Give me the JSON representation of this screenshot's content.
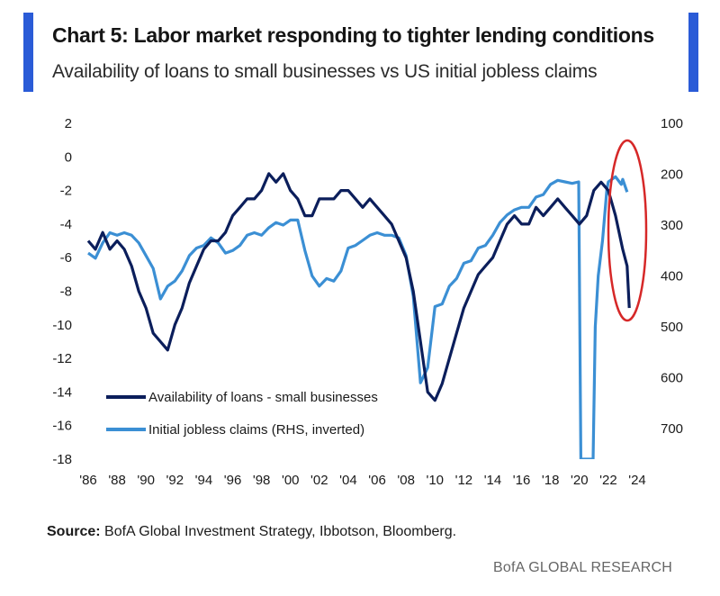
{
  "header": {
    "title": "Chart 5: Labor market responding to tighter lending conditions",
    "subtitle": "Availability of loans to small businesses vs US initial jobless claims"
  },
  "footer": {
    "source_label": "Source:",
    "source_text": "BofA Global Investment Strategy, Ibbotson, Bloomberg.",
    "brand": "BofA GLOBAL RESEARCH"
  },
  "colors": {
    "accent_bar": "#2a5bd7",
    "series_loans": "#0b1e5b",
    "series_claims": "#3b8fd4",
    "annotation": "#d62828"
  },
  "chart_data": {
    "type": "line",
    "title": "Chart 5: Labor market responding to tighter lending conditions",
    "subtitle": "Availability of loans to small businesses vs US initial jobless claims",
    "x_axis": {
      "range": [
        1986,
        2024
      ],
      "ticks": [
        1986,
        1988,
        1990,
        1992,
        1994,
        1996,
        1998,
        2000,
        2002,
        2004,
        2006,
        2008,
        2010,
        2012,
        2014,
        2016,
        2018,
        2020,
        2022,
        2024
      ],
      "tick_labels": [
        "'86",
        "'88",
        "'90",
        "'92",
        "'94",
        "'96",
        "'98",
        "'00",
        "'02",
        "'04",
        "'06",
        "'08",
        "'10",
        "'12",
        "'14",
        "'16",
        "'18",
        "'20",
        "'22",
        "'24"
      ]
    },
    "y_left": {
      "range": [
        -18,
        2
      ],
      "ticks": [
        2,
        0,
        -2,
        -4,
        -6,
        -8,
        -10,
        -12,
        -14,
        -16,
        -18
      ],
      "tick_labels": [
        "2",
        "0",
        "-2",
        "-4",
        "-6",
        "-8",
        "-10",
        "-12",
        "-14",
        "-16",
        "-18"
      ]
    },
    "y_right": {
      "label": "RHS, inverted",
      "inverted": true,
      "range": [
        100,
        760
      ],
      "ticks": [
        100,
        200,
        300,
        400,
        500,
        600,
        700
      ],
      "tick_labels": [
        "100",
        "200",
        "300",
        "400",
        "500",
        "600",
        "700"
      ]
    },
    "legend": {
      "position": "bottom-left",
      "entries": [
        "Availability of loans - small businesses",
        "Initial jobless claims (RHS, inverted)"
      ]
    },
    "series": [
      {
        "name": "Availability of loans - small businesses",
        "axis": "left",
        "points": [
          [
            1986,
            -5
          ],
          [
            1986.5,
            -5.5
          ],
          [
            1987,
            -4.5
          ],
          [
            1987.5,
            -5.5
          ],
          [
            1988,
            -5
          ],
          [
            1988.5,
            -5.5
          ],
          [
            1989,
            -6.5
          ],
          [
            1989.5,
            -8
          ],
          [
            1990,
            -9
          ],
          [
            1990.5,
            -10.5
          ],
          [
            1991,
            -11
          ],
          [
            1991.5,
            -11.5
          ],
          [
            1992,
            -10
          ],
          [
            1992.5,
            -9
          ],
          [
            1993,
            -7.5
          ],
          [
            1993.5,
            -6.5
          ],
          [
            1994,
            -5.5
          ],
          [
            1994.5,
            -5
          ],
          [
            1995,
            -5
          ],
          [
            1995.5,
            -4.5
          ],
          [
            1996,
            -3.5
          ],
          [
            1996.5,
            -3
          ],
          [
            1997,
            -2.5
          ],
          [
            1997.5,
            -2.5
          ],
          [
            1998,
            -2
          ],
          [
            1998.5,
            -1
          ],
          [
            1999,
            -1.5
          ],
          [
            1999.5,
            -1
          ],
          [
            2000,
            -2
          ],
          [
            2000.5,
            -2.5
          ],
          [
            2001,
            -3.5
          ],
          [
            2001.5,
            -3.5
          ],
          [
            2002,
            -2.5
          ],
          [
            2002.5,
            -2.5
          ],
          [
            2003,
            -2.5
          ],
          [
            2003.5,
            -2
          ],
          [
            2004,
            -2
          ],
          [
            2004.5,
            -2.5
          ],
          [
            2005,
            -3
          ],
          [
            2005.5,
            -2.5
          ],
          [
            2006,
            -3
          ],
          [
            2006.5,
            -3.5
          ],
          [
            2007,
            -4
          ],
          [
            2007.5,
            -5
          ],
          [
            2008,
            -6
          ],
          [
            2008.5,
            -8
          ],
          [
            2009,
            -11
          ],
          [
            2009.5,
            -14
          ],
          [
            2010,
            -14.5
          ],
          [
            2010.5,
            -13.5
          ],
          [
            2011,
            -12
          ],
          [
            2011.5,
            -10.5
          ],
          [
            2012,
            -9
          ],
          [
            2012.5,
            -8
          ],
          [
            2013,
            -7
          ],
          [
            2013.5,
            -6.5
          ],
          [
            2014,
            -6
          ],
          [
            2014.5,
            -5
          ],
          [
            2015,
            -4
          ],
          [
            2015.5,
            -3.5
          ],
          [
            2016,
            -4
          ],
          [
            2016.5,
            -4
          ],
          [
            2017,
            -3
          ],
          [
            2017.5,
            -3.5
          ],
          [
            2018,
            -3
          ],
          [
            2018.5,
            -2.5
          ],
          [
            2019,
            -3
          ],
          [
            2019.5,
            -3.5
          ],
          [
            2020,
            -4
          ],
          [
            2020.5,
            -3.5
          ],
          [
            2021,
            -2
          ],
          [
            2021.5,
            -1.5
          ],
          [
            2022,
            -2
          ],
          [
            2022.5,
            -3.5
          ],
          [
            2023,
            -5.5
          ],
          [
            2023.3,
            -6.5
          ],
          [
            2023.45,
            -9
          ]
        ]
      },
      {
        "name": "Initial jobless claims (RHS, inverted)",
        "axis": "right",
        "points": [
          [
            1986,
            355
          ],
          [
            1986.5,
            365
          ],
          [
            1987,
            335
          ],
          [
            1987.5,
            315
          ],
          [
            1988,
            320
          ],
          [
            1988.5,
            315
          ],
          [
            1989,
            320
          ],
          [
            1989.5,
            335
          ],
          [
            1990,
            360
          ],
          [
            1990.5,
            385
          ],
          [
            1991,
            445
          ],
          [
            1991.5,
            420
          ],
          [
            1992,
            410
          ],
          [
            1992.5,
            390
          ],
          [
            1993,
            360
          ],
          [
            1993.5,
            345
          ],
          [
            1994,
            340
          ],
          [
            1994.5,
            325
          ],
          [
            1995,
            335
          ],
          [
            1995.5,
            355
          ],
          [
            1996,
            350
          ],
          [
            1996.5,
            340
          ],
          [
            1997,
            320
          ],
          [
            1997.5,
            315
          ],
          [
            1998,
            320
          ],
          [
            1998.5,
            305
          ],
          [
            1999,
            295
          ],
          [
            1999.5,
            300
          ],
          [
            2000,
            290
          ],
          [
            2000.5,
            290
          ],
          [
            2001,
            350
          ],
          [
            2001.5,
            400
          ],
          [
            2002,
            420
          ],
          [
            2002.5,
            405
          ],
          [
            2003,
            410
          ],
          [
            2003.5,
            390
          ],
          [
            2004,
            345
          ],
          [
            2004.5,
            340
          ],
          [
            2005,
            330
          ],
          [
            2005.5,
            320
          ],
          [
            2006,
            315
          ],
          [
            2006.5,
            320
          ],
          [
            2007,
            320
          ],
          [
            2007.5,
            325
          ],
          [
            2008,
            360
          ],
          [
            2008.5,
            440
          ],
          [
            2009,
            610
          ],
          [
            2009.5,
            580
          ],
          [
            2010,
            460
          ],
          [
            2010.5,
            455
          ],
          [
            2011,
            420
          ],
          [
            2011.5,
            405
          ],
          [
            2012,
            375
          ],
          [
            2012.5,
            370
          ],
          [
            2013,
            345
          ],
          [
            2013.5,
            340
          ],
          [
            2014,
            320
          ],
          [
            2014.5,
            295
          ],
          [
            2015,
            280
          ],
          [
            2015.5,
            270
          ],
          [
            2016,
            265
          ],
          [
            2016.5,
            265
          ],
          [
            2017,
            245
          ],
          [
            2017.5,
            240
          ],
          [
            2018,
            220
          ],
          [
            2018.5,
            212
          ],
          [
            2019,
            215
          ],
          [
            2019.5,
            218
          ],
          [
            2019.95,
            215
          ],
          [
            2020.1,
            760
          ],
          [
            2020.4,
            760
          ],
          [
            2020.55,
            760
          ],
          [
            2020.75,
            760
          ],
          [
            2020.95,
            760
          ],
          [
            2021.1,
            500
          ],
          [
            2021.3,
            400
          ],
          [
            2021.6,
            330
          ],
          [
            2021.9,
            230
          ],
          [
            2022,
            215
          ],
          [
            2022.5,
            205
          ],
          [
            2022.9,
            220
          ],
          [
            2023,
            210
          ],
          [
            2023.3,
            235
          ]
        ]
      }
    ]
  }
}
